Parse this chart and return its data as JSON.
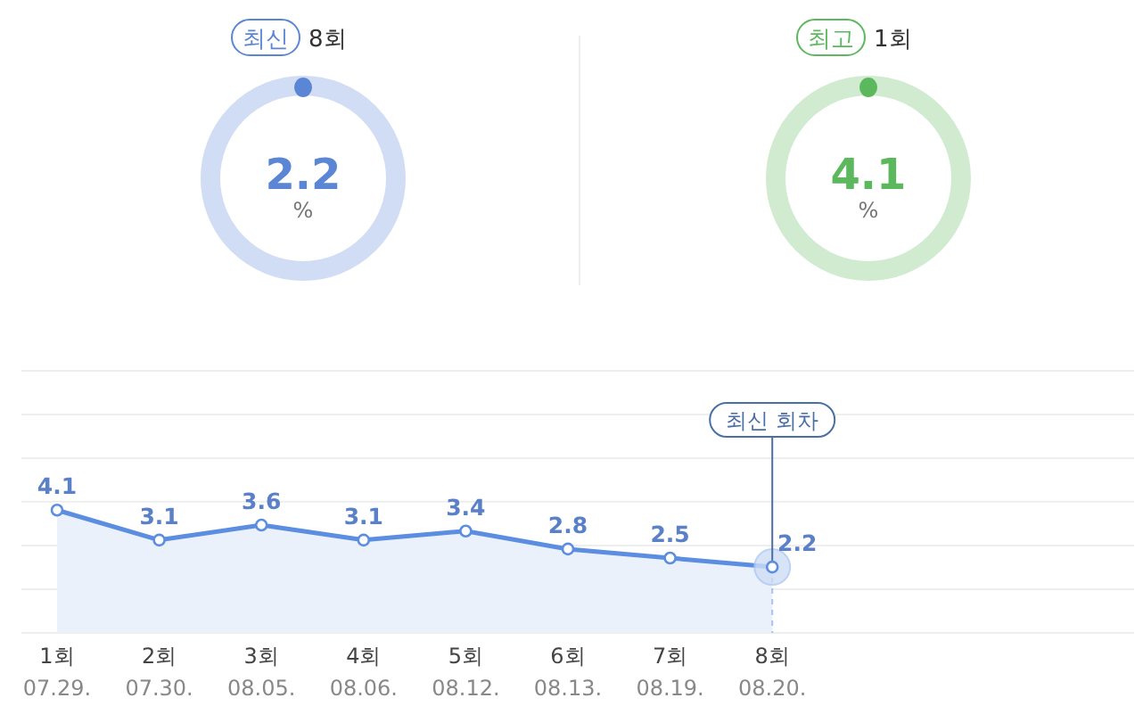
{
  "chart_data": [
    {
      "type": "other",
      "color": "#5b86d6",
      "annotations": [
        "최신",
        "8회",
        "2.2",
        "%"
      ]
    },
    {
      "type": "other",
      "color": "#5cb85c",
      "annotations": [
        "최고",
        "1회",
        "4.1",
        "%"
      ]
    },
    {
      "type": "area",
      "categories": [
        "1회\n07.29.",
        "2회\n07.30.",
        "3회\n08.05.",
        "4회\n08.06.",
        "5회\n08.12.",
        "6회\n08.13.",
        "7회\n08.19.",
        "8회\n08.20."
      ],
      "values": [
        4.1,
        3.1,
        3.6,
        3.1,
        3.4,
        2.8,
        2.5,
        2.2
      ],
      "color": "#5b8de0",
      "ylim": [
        0,
        8.75
      ],
      "yticks": [
        {
          "value": 0,
          "label": null
        },
        {
          "value": 1.46,
          "label": null
        },
        {
          "value": 2.92,
          "label": null
        },
        {
          "value": 4.38,
          "label": null
        },
        {
          "value": 5.83,
          "label": null
        },
        {
          "value": 7.29,
          "label": null
        },
        {
          "value": 8.75,
          "label": null
        }
      ],
      "grid": "y",
      "data_labels": true,
      "marker": "circle",
      "annotations": [
        {
          "text": "최신 회차",
          "x": "8회\n08.20.",
          "y": 2.2
        }
      ]
    }
  ]
}
